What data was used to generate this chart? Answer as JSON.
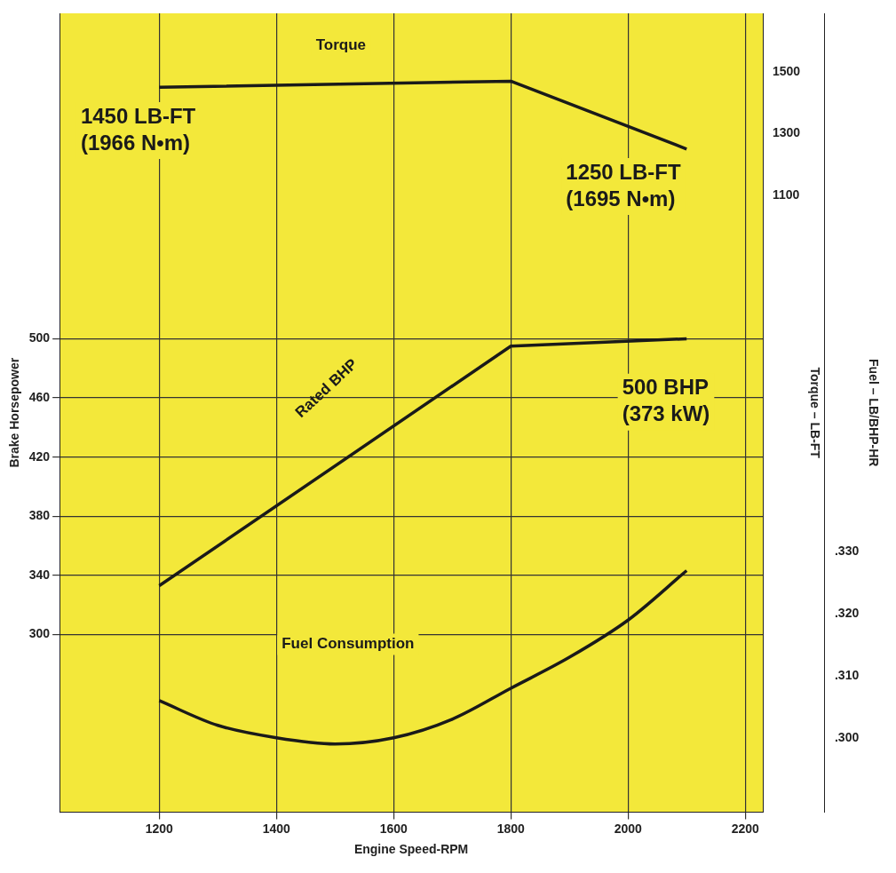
{
  "chart_data": {
    "type": "line",
    "xlabel": "Engine Speed-RPM",
    "ylabel": "Brake Horsepower",
    "y2label": "Torque – LB-FT",
    "y3label": "Fuel – LB/BHP-HR",
    "xlim": [
      1030,
      2230
    ],
    "xticks": [
      1200,
      1400,
      1600,
      1800,
      2000,
      2200
    ],
    "ylim": [
      180,
      720
    ],
    "yticks": [
      300,
      340,
      380,
      420,
      460,
      500
    ],
    "y2lim": [
      -900,
      1690
    ],
    "y2ticks": [
      1100,
      1300,
      1500
    ],
    "y3lim": [
      0.288,
      0.417
    ],
    "y3ticks": [
      {
        "value": 0.3,
        "label": ".300"
      },
      {
        "value": 0.31,
        "label": ".310"
      },
      {
        "value": 0.32,
        "label": ".320"
      },
      {
        "value": 0.33,
        "label": ".330"
      }
    ],
    "grid": true,
    "legend": false,
    "line_style": "solid",
    "series": [
      {
        "color": "#1a1a1a",
        "axis": "y2",
        "x": [
          1200,
          1800,
          2100
        ],
        "values": [
          1450,
          1470,
          1250
        ]
      },
      {
        "color": "#1a1a1a",
        "axis": "y",
        "x": [
          1200,
          1800,
          2100
        ],
        "values": [
          333,
          495,
          500
        ]
      },
      {
        "color": "#1a1a1a",
        "axis": "y3",
        "x": [
          1200,
          1300,
          1400,
          1500,
          1600,
          1700,
          1800,
          1900,
          2000,
          2100
        ],
        "values": [
          0.306,
          0.302,
          0.3,
          0.299,
          0.3,
          0.303,
          0.308,
          0.313,
          0.319,
          0.327
        ]
      }
    ],
    "annotations": [
      "Torque",
      "1450 LB-FT\n(1966 N•m)",
      "1250 LB-FT\n(1695 N•m)",
      "Rated BHP",
      "500 BHP\n(373 kW)",
      "Fuel Consumption"
    ]
  }
}
